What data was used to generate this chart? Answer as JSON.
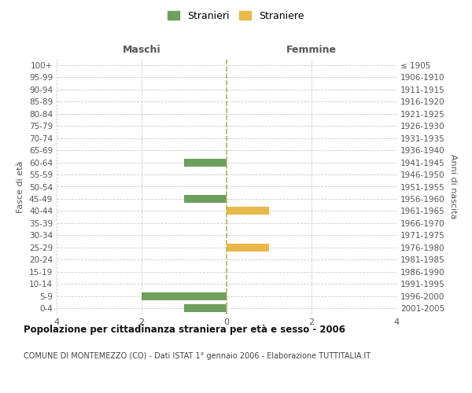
{
  "age_groups": [
    "100+",
    "95-99",
    "90-94",
    "85-89",
    "80-84",
    "75-79",
    "70-74",
    "65-69",
    "60-64",
    "55-59",
    "50-54",
    "45-49",
    "40-44",
    "35-39",
    "30-34",
    "25-29",
    "20-24",
    "15-19",
    "10-14",
    "5-9",
    "0-4"
  ],
  "birth_years": [
    "≤ 1905",
    "1906-1910",
    "1911-1915",
    "1916-1920",
    "1921-1925",
    "1926-1930",
    "1931-1935",
    "1936-1940",
    "1941-1945",
    "1946-1950",
    "1951-1955",
    "1956-1960",
    "1961-1965",
    "1966-1970",
    "1971-1975",
    "1976-1980",
    "1981-1985",
    "1986-1990",
    "1991-1995",
    "1996-2000",
    "2001-2005"
  ],
  "males": [
    0,
    0,
    0,
    0,
    0,
    0,
    0,
    0,
    1,
    0,
    0,
    1,
    0,
    0,
    0,
    0,
    0,
    0,
    0,
    2,
    1
  ],
  "females": [
    0,
    0,
    0,
    0,
    0,
    0,
    0,
    0,
    0,
    0,
    0,
    0,
    1,
    0,
    0,
    1,
    0,
    0,
    0,
    0,
    0
  ],
  "male_color": "#6d9f5e",
  "female_color": "#e8b84b",
  "male_label": "Stranieri",
  "female_label": "Straniere",
  "center_line_color": "#b5b55a",
  "grid_color": "#cccccc",
  "background_color": "#ffffff",
  "xlim": 4,
  "title_main": "Popolazione per cittadinanza straniera per età e sesso - 2006",
  "title_sub": "COMUNE DI MONTEMEZZO (CO) - Dati ISTAT 1° gennaio 2006 - Elaborazione TUTTITALIA.IT",
  "xlabel_left": "Maschi",
  "xlabel_right": "Femmine",
  "ylabel_left": "Fasce di età",
  "ylabel_right": "Anni di nascita"
}
